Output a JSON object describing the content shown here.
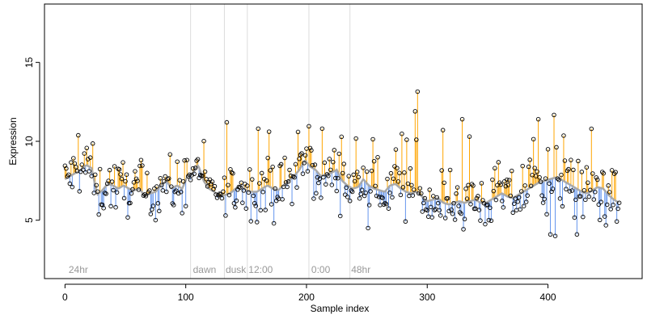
{
  "chart_data": {
    "type": "scatter",
    "title": "",
    "xlabel": "Sample index",
    "ylabel": "Expression",
    "xlim": [
      -17,
      478
    ],
    "ylim": [
      1.3,
      18.7
    ],
    "x_ticks": [
      0,
      100,
      200,
      300,
      400
    ],
    "y_ticks": [
      5,
      10,
      15
    ],
    "colors": {
      "above": "#FFA500",
      "below": "#6495ED",
      "smooth": "#A9A9A9",
      "marker_edge": "#000000",
      "annotation": "#999999",
      "separator": "#DCDCDC"
    },
    "annotations": [
      {
        "label": "24hr",
        "x": 3,
        "sep": 0
      },
      {
        "label": "dawn",
        "x": 106,
        "sep": 104
      },
      {
        "label": "dusk",
        "x": 133,
        "sep": 132
      },
      {
        "label": "12:00",
        "x": 152,
        "sep": 151
      },
      {
        "label": "0:00",
        "x": 204,
        "sep": 202
      },
      {
        "label": "48hr",
        "x": 237,
        "sep": 236
      }
    ],
    "smooth_y": [
      7.6,
      7.8,
      8.0,
      8.2,
      8.5,
      8.3,
      6.6,
      6.9,
      7.3,
      7.2,
      7.0,
      7.2,
      7.0,
      6.9,
      7.0,
      6.5,
      6.7,
      6.8,
      7.2,
      7.5,
      7.0,
      7.2,
      7.0,
      7.8,
      8.0,
      8.5,
      7.5,
      7.0,
      6.8,
      6.5,
      6.6,
      6.7,
      7.0,
      7.2,
      6.9,
      6.8,
      6.8,
      7.0,
      7.2,
      7.0,
      6.9,
      7.2,
      7.5,
      7.8,
      8.2,
      8.8,
      8.4,
      8.2,
      7.8,
      7.9,
      8.0,
      8.2,
      7.5,
      7.2,
      7.0,
      7.1,
      7.6,
      7.2,
      7.0,
      6.9,
      6.8,
      7.2,
      7.3,
      7.0,
      6.8,
      6.7,
      6.8,
      6.5,
      6.2,
      6.3,
      6.4,
      6.1,
      6.0,
      6.1,
      6.2,
      6.1,
      6.2,
      6.3,
      6.1,
      6.1,
      6.3,
      6.5,
      6.7,
      6.5,
      6.4,
      6.6,
      6.8,
      7.0,
      7.2,
      7.4,
      7.5,
      7.6,
      7.7,
      7.6,
      7.4,
      7.2,
      7.0,
      6.8,
      6.7,
      6.9,
      7.1,
      7.0,
      6.6,
      6.3,
      6.1
    ]
  },
  "annotation_labels": [
    "24hr",
    "dawn",
    "dusk",
    "12:00",
    "0:00",
    "48hr"
  ],
  "axis": {
    "xlabel": "Sample index",
    "ylabel": "Expression",
    "x_ticks": [
      "0",
      "100",
      "200",
      "300",
      "400"
    ],
    "y_ticks": [
      "5",
      "10",
      "15"
    ]
  }
}
